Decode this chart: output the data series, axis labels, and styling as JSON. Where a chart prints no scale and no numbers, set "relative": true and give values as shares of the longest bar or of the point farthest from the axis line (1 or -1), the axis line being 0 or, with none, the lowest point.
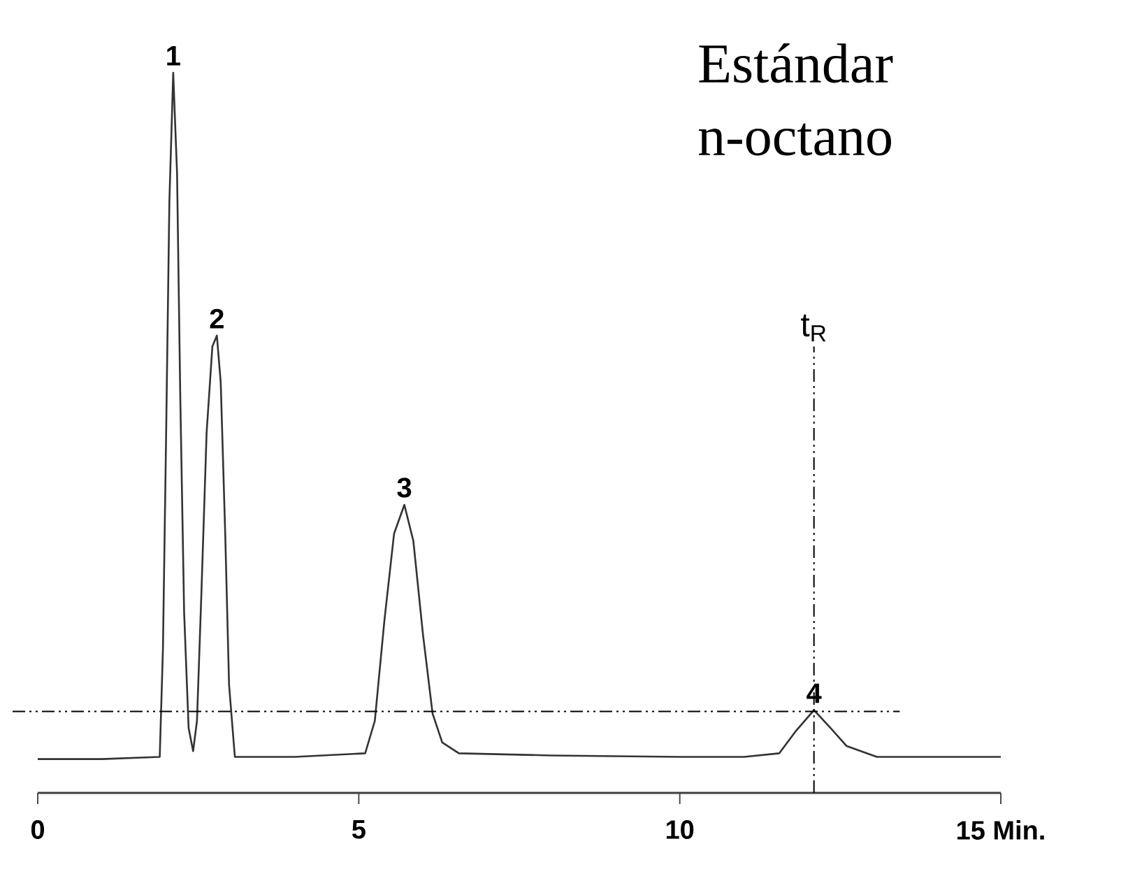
{
  "chart_data": {
    "type": "line",
    "relative": true,
    "x": [
      0,
      1.0,
      1.9,
      1.95,
      2.0,
      2.05,
      2.11,
      2.17,
      2.22,
      2.28,
      2.35,
      2.42,
      2.48,
      2.55,
      2.63,
      2.72,
      2.79,
      2.85,
      2.92,
      2.98,
      3.07,
      4.0,
      5.1,
      5.25,
      5.4,
      5.55,
      5.71,
      5.85,
      6.0,
      6.15,
      6.3,
      6.56,
      8.0,
      10.0,
      11.0,
      11.55,
      11.8,
      12.09,
      12.35,
      12.6,
      13.07,
      14.0,
      15.0
    ],
    "series": [
      {
        "color": "#333333",
        "values": [
          0.047,
          0.047,
          0.05,
          0.2,
          0.5,
          0.82,
          1.0,
          0.86,
          0.55,
          0.25,
          0.09,
          0.058,
          0.1,
          0.28,
          0.5,
          0.62,
          0.635,
          0.57,
          0.36,
          0.15,
          0.05,
          0.05,
          0.055,
          0.1,
          0.24,
          0.36,
          0.4,
          0.35,
          0.22,
          0.11,
          0.07,
          0.055,
          0.052,
          0.05,
          0.05,
          0.055,
          0.085,
          0.115,
          0.09,
          0.065,
          0.05,
          0.05,
          0.05
        ]
      }
    ],
    "xlim": [
      0,
      15
    ],
    "xticks": [
      0,
      5,
      10,
      {
        "value": 15,
        "label": "15 Min."
      }
    ],
    "ref_lines": [
      {
        "axis": "y",
        "value": 0.113,
        "line_style": "dashdot"
      },
      {
        "axis": "x",
        "value": 12.09,
        "label": "t$_{R}$",
        "line_style": "dashdot"
      }
    ],
    "annotations": [
      "Estándar n-octano",
      {
        "text": "1",
        "x": 2.11,
        "y": 1.0
      },
      {
        "text": "2",
        "x": 2.79,
        "y": 0.635
      },
      {
        "text": "3",
        "x": 5.71,
        "y": 0.4
      },
      {
        "text": "4",
        "x": 12.09,
        "y": 0.115
      }
    ]
  }
}
